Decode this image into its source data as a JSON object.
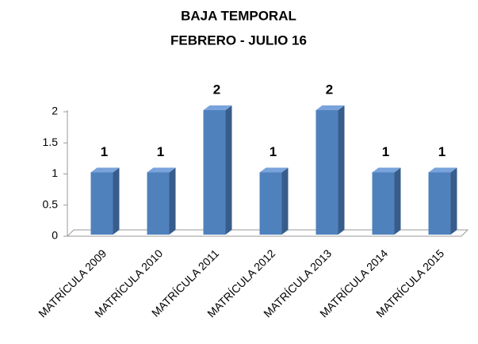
{
  "chart_data": {
    "type": "bar3d",
    "title": "BAJA TEMPORAL",
    "subtitle": "FEBRERO - JULIO 16",
    "categories": [
      "MATRÍCULA 2009",
      "MATRÍCULA 2010",
      "MATRÍCULA 2011",
      "MATRÍCULA 2012",
      "MATRÍCULA 2013",
      "MATRÍCULA 2014",
      "MATRÍCULA 2015"
    ],
    "values": [
      1,
      1,
      2,
      1,
      2,
      1,
      1
    ],
    "color": "#4f81bd",
    "ylim": [
      0,
      2
    ],
    "yticks": [
      0,
      {
        "value": 0.5,
        "label": "0.5"
      },
      1,
      {
        "value": 1.5,
        "label": "1.5"
      },
      2
    ],
    "grid": false
  }
}
